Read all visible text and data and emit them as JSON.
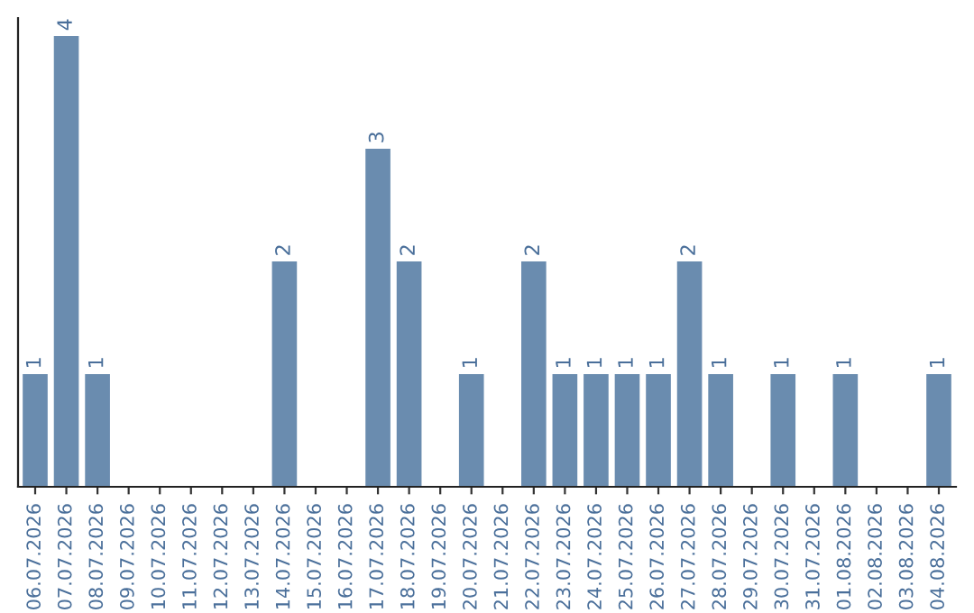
{
  "chart_data": {
    "type": "bar",
    "categories": [
      "06.07.2026",
      "07.07.2026",
      "08.07.2026",
      "09.07.2026",
      "10.07.2026",
      "11.07.2026",
      "12.07.2026",
      "13.07.2026",
      "14.07.2026",
      "15.07.2026",
      "16.07.2026",
      "17.07.2026",
      "18.07.2026",
      "19.07.2026",
      "20.07.2026",
      "21.07.2026",
      "22.07.2026",
      "23.07.2026",
      "24.07.2026",
      "25.07.2026",
      "26.07.2026",
      "27.07.2026",
      "28.07.2026",
      "29.07.2026",
      "30.07.2026",
      "31.07.2026",
      "01.08.2026",
      "02.08.2026",
      "03.08.2026",
      "04.08.2026"
    ],
    "values": [
      1,
      4,
      1,
      0,
      0,
      0,
      0,
      0,
      2,
      0,
      0,
      3,
      2,
      0,
      1,
      0,
      2,
      1,
      1,
      1,
      1,
      2,
      1,
      0,
      1,
      0,
      1,
      0,
      0,
      1
    ],
    "value_labels": [
      "1",
      "4",
      "1",
      null,
      null,
      null,
      null,
      null,
      "2",
      null,
      null,
      "3",
      "2",
      null,
      "1",
      null,
      "2",
      "1",
      "1",
      "1",
      "1",
      "2",
      "1",
      null,
      "1",
      null,
      "1",
      null,
      null,
      "1"
    ],
    "color": "#6a8caf",
    "tick_labels": "x",
    "grid": false,
    "legend": false
  }
}
